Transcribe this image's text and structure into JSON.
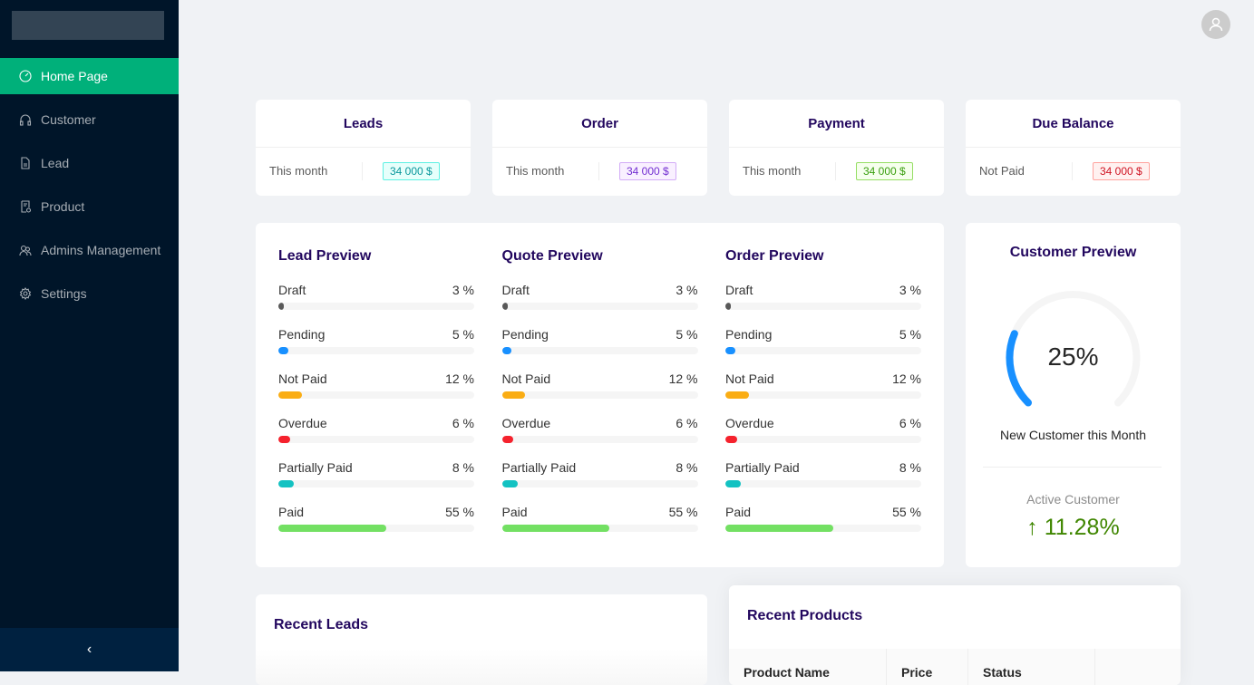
{
  "sidebar": {
    "items": [
      {
        "label": "Home Page",
        "icon": "dashboard-icon",
        "active": true
      },
      {
        "label": "Customer",
        "icon": "headphones-icon"
      },
      {
        "label": "Lead",
        "icon": "file-icon"
      },
      {
        "label": "Product",
        "icon": "product-icon"
      },
      {
        "label": "Admins Management",
        "icon": "team-icon"
      },
      {
        "label": "Settings",
        "icon": "gear-icon"
      }
    ],
    "collapse_icon": "chevron-left-icon",
    "collapse_label": "‹"
  },
  "stats": [
    {
      "title": "Leads",
      "label": "This month",
      "value": "34 000 $",
      "color": "#08979c",
      "bg": "#e6fffb",
      "border": "#5cf1e3"
    },
    {
      "title": "Order",
      "label": "This month",
      "value": "34 000 $",
      "color": "#722ed1",
      "bg": "#f9f0ff",
      "border": "#d3adf7"
    },
    {
      "title": "Payment",
      "label": "This month",
      "value": "34 000 $",
      "color": "#389e0d",
      "bg": "#f6ffed",
      "border": "#95de64"
    },
    {
      "title": "Due Balance",
      "label": "Not Paid",
      "value": "34 000 $",
      "color": "#cf1322",
      "bg": "#fff1f0",
      "border": "#ffa39e"
    }
  ],
  "previews": [
    {
      "title": "Lead Preview",
      "rows": [
        {
          "label": "Draft",
          "value": "3 %",
          "pct": 3,
          "color": "#595959"
        },
        {
          "label": "Pending",
          "value": "5 %",
          "pct": 5,
          "color": "#1890ff"
        },
        {
          "label": "Not Paid",
          "value": "12 %",
          "pct": 12,
          "color": "#faad14"
        },
        {
          "label": "Overdue",
          "value": "6 %",
          "pct": 6,
          "color": "#f5222d"
        },
        {
          "label": "Partially Paid",
          "value": "8 %",
          "pct": 8,
          "color": "#13c2c2"
        },
        {
          "label": "Paid",
          "value": "55 %",
          "pct": 55,
          "color": "#73e063"
        }
      ]
    },
    {
      "title": "Quote Preview",
      "rows": [
        {
          "label": "Draft",
          "value": "3 %",
          "pct": 3,
          "color": "#595959"
        },
        {
          "label": "Pending",
          "value": "5 %",
          "pct": 5,
          "color": "#1890ff"
        },
        {
          "label": "Not Paid",
          "value": "12 %",
          "pct": 12,
          "color": "#faad14"
        },
        {
          "label": "Overdue",
          "value": "6 %",
          "pct": 6,
          "color": "#f5222d"
        },
        {
          "label": "Partially Paid",
          "value": "8 %",
          "pct": 8,
          "color": "#13c2c2"
        },
        {
          "label": "Paid",
          "value": "55 %",
          "pct": 55,
          "color": "#73e063"
        }
      ]
    },
    {
      "title": "Order Preview",
      "rows": [
        {
          "label": "Draft",
          "value": "3 %",
          "pct": 3,
          "color": "#595959"
        },
        {
          "label": "Pending",
          "value": "5 %",
          "pct": 5,
          "color": "#1890ff"
        },
        {
          "label": "Not Paid",
          "value": "12 %",
          "pct": 12,
          "color": "#faad14"
        },
        {
          "label": "Overdue",
          "value": "6 %",
          "pct": 6,
          "color": "#f5222d"
        },
        {
          "label": "Partially Paid",
          "value": "8 %",
          "pct": 8,
          "color": "#13c2c2"
        },
        {
          "label": "Paid",
          "value": "55 %",
          "pct": 55,
          "color": "#73e063"
        }
      ]
    }
  ],
  "customer": {
    "title": "Customer Preview",
    "percent_label": "25%",
    "percent": 25,
    "caption": "New Customer this Month",
    "active_label": "Active Customer",
    "active_value": "11.28",
    "active_unit": "%",
    "arrow_icon": "arrow-up-icon",
    "gauge_color": "#1890ff",
    "trend_color": "#3f8600"
  },
  "recent_leads": {
    "title": "Recent Leads"
  },
  "recent_products": {
    "title": "Recent Products",
    "columns": [
      "Product Name",
      "Price",
      "Status"
    ]
  },
  "user": {
    "icon": "user-icon"
  }
}
